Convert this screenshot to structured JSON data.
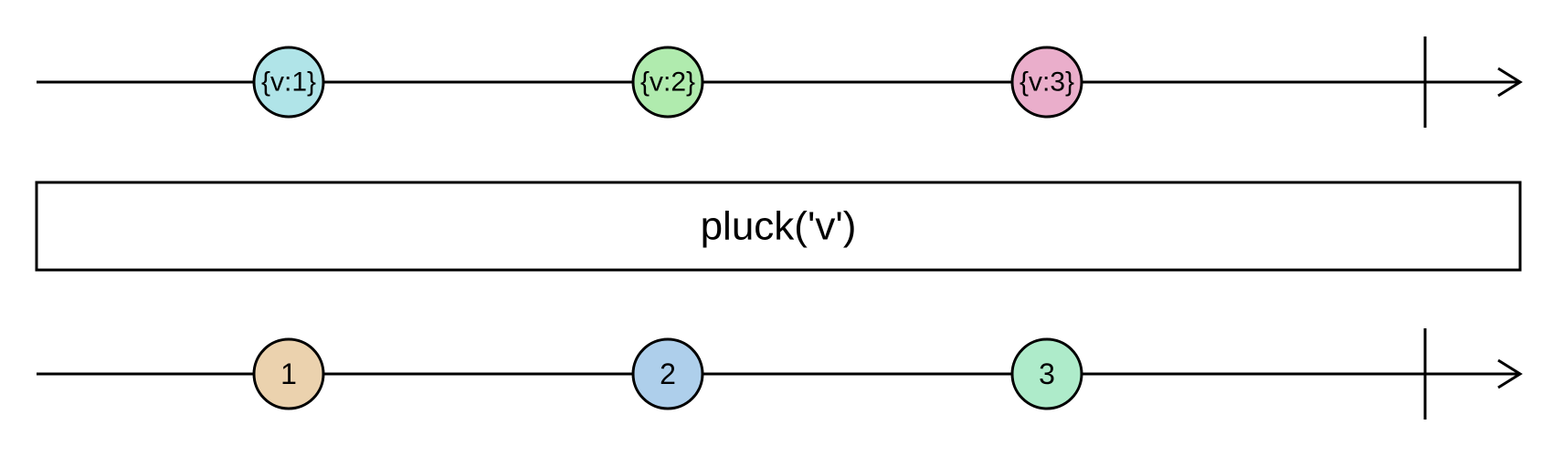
{
  "diagram": {
    "operator": "pluck('v')",
    "input_stream": {
      "marbles": [
        {
          "label": "{v:1}",
          "color": "#b0e4e8"
        },
        {
          "label": "{v:2}",
          "color": "#b0ebae"
        },
        {
          "label": "{v:3}",
          "color": "#eaaecb"
        }
      ],
      "completed": true
    },
    "output_stream": {
      "marbles": [
        {
          "label": "1",
          "color": "#ebd2ae"
        },
        {
          "label": "2",
          "color": "#aecfeb"
        },
        {
          "label": "3",
          "color": "#aeebca"
        }
      ],
      "completed": true
    }
  }
}
